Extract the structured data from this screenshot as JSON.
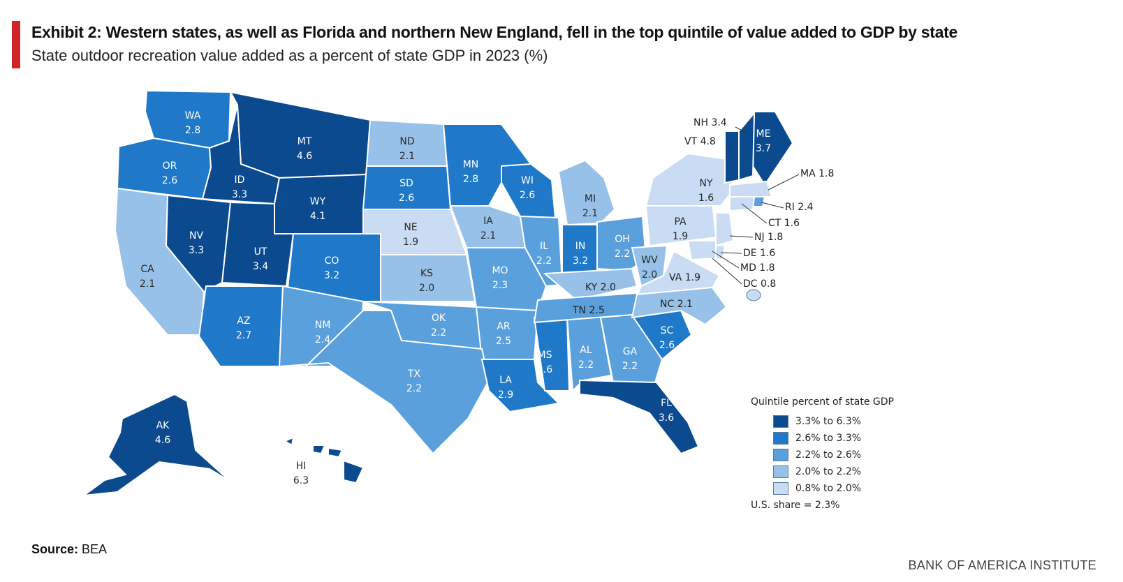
{
  "header": {
    "title": "Exhibit 2: Western states, as well as Florida and northern New England, fell in the top quintile of value added to GDP by state",
    "subtitle": "State outdoor recreation value added as a percent of state GDP in 2023 (%)"
  },
  "footer": {
    "source_label": "Source:",
    "source_value": "BEA",
    "brand": "BANK OF AMERICA INSTITUTE"
  },
  "legend": {
    "title": "Quintile percent of state GDP",
    "items": [
      {
        "label": "3.3% to 6.3%",
        "color": "#0b4a8f"
      },
      {
        "label": "2.6% to 3.3%",
        "color": "#1f79c8"
      },
      {
        "label": "2.2% to 2.6%",
        "color": "#5aa0dc"
      },
      {
        "label": "2.0% to 2.2%",
        "color": "#97c1e8"
      },
      {
        "label": "0.8% to 2.0%",
        "color": "#c9dcf3"
      }
    ],
    "note": "U.S. share = 2.3%"
  },
  "states": [
    {
      "abbr": "WA",
      "value": "2.8"
    },
    {
      "abbr": "OR",
      "value": "2.6"
    },
    {
      "abbr": "ID",
      "value": "3.3"
    },
    {
      "abbr": "MT",
      "value": "4.6"
    },
    {
      "abbr": "WY",
      "value": "4.1"
    },
    {
      "abbr": "ND",
      "value": "2.1"
    },
    {
      "abbr": "SD",
      "value": "2.6"
    },
    {
      "abbr": "NE",
      "value": "1.9"
    },
    {
      "abbr": "MN",
      "value": "2.8"
    },
    {
      "abbr": "WI",
      "value": "2.6"
    },
    {
      "abbr": "MI",
      "value": "2.1"
    },
    {
      "abbr": "IA",
      "value": "2.1"
    },
    {
      "abbr": "CA",
      "value": "2.1"
    },
    {
      "abbr": "NV",
      "value": "3.3"
    },
    {
      "abbr": "UT",
      "value": "3.4"
    },
    {
      "abbr": "CO",
      "value": "3.2"
    },
    {
      "abbr": "KS",
      "value": "2.0"
    },
    {
      "abbr": "MO",
      "value": "2.3"
    },
    {
      "abbr": "IL",
      "value": "2.2"
    },
    {
      "abbr": "IN",
      "value": "3.2"
    },
    {
      "abbr": "OH",
      "value": "2.2"
    },
    {
      "abbr": "PA",
      "value": "1.9"
    },
    {
      "abbr": "NY",
      "value": "1.6"
    },
    {
      "abbr": "AZ",
      "value": "2.7"
    },
    {
      "abbr": "NM",
      "value": "2.4"
    },
    {
      "abbr": "OK",
      "value": "2.2"
    },
    {
      "abbr": "AR",
      "value": "2.5"
    },
    {
      "abbr": "TX",
      "value": "2.2"
    },
    {
      "abbr": "LA",
      "value": "2.9"
    },
    {
      "abbr": "MS",
      "value": "2.6"
    },
    {
      "abbr": "AL",
      "value": "2.2"
    },
    {
      "abbr": "GA",
      "value": "2.2"
    },
    {
      "abbr": "SC",
      "value": "2.6"
    },
    {
      "abbr": "FL",
      "value": "3.6"
    },
    {
      "abbr": "AK",
      "value": "4.6"
    },
    {
      "abbr": "HI",
      "value": "6.3"
    },
    {
      "abbr": "KY",
      "value": "2.0"
    },
    {
      "abbr": "TN",
      "value": "2.5"
    },
    {
      "abbr": "NC",
      "value": "2.1"
    },
    {
      "abbr": "WV",
      "value": "2.0"
    },
    {
      "abbr": "VA",
      "value": "1.9"
    },
    {
      "abbr": "ME",
      "value": "3.7"
    },
    {
      "abbr": "NH",
      "value": "3.4"
    },
    {
      "abbr": "VT",
      "value": "4.8"
    },
    {
      "abbr": "MA",
      "value": "1.8"
    },
    {
      "abbr": "RI",
      "value": "2.4"
    },
    {
      "abbr": "CT",
      "value": "1.6"
    },
    {
      "abbr": "NJ",
      "value": "1.8"
    },
    {
      "abbr": "DE",
      "value": "1.6"
    },
    {
      "abbr": "MD",
      "value": "1.8"
    },
    {
      "abbr": "DC",
      "value": "0.8"
    }
  ],
  "external_labels": {
    "NH": "NH 3.4",
    "VT": "VT 4.8",
    "MA": "MA 1.8",
    "RI": "RI 2.4",
    "CT": "CT 1.6",
    "NJ": "NJ 1.8",
    "DE": "DE 1.6",
    "MD": "MD 1.8",
    "DC": "DC 0.8",
    "KY": "KY 2.0",
    "VA": "VA 1.9",
    "TN": "TN 2.5",
    "NC": "NC 2.1"
  }
}
